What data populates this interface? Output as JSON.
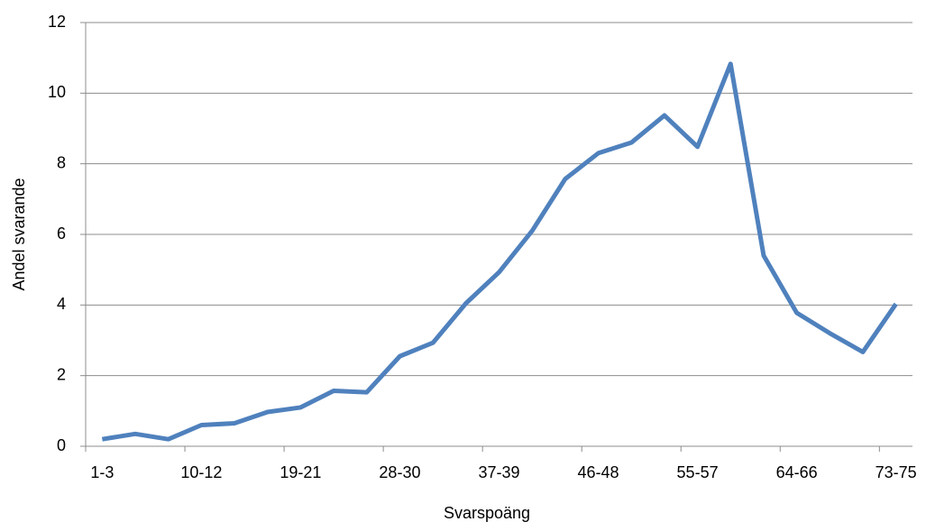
{
  "chart_data": {
    "type": "line",
    "x_label": "Svarspoäng",
    "y_label": "Andel svarande",
    "categories": [
      "1-3",
      null,
      null,
      "10-12",
      null,
      null,
      "19-21",
      null,
      null,
      "28-30",
      null,
      null,
      "37-39",
      null,
      null,
      "46-48",
      null,
      null,
      "55-57",
      null,
      null,
      "64-66",
      null,
      null,
      "73-75"
    ],
    "series": [
      {
        "name": "Andel svarande",
        "color": "#4f81bd",
        "values": [
          0.2,
          0.35,
          0.2,
          0.6,
          0.65,
          0.97,
          1.1,
          1.57,
          1.53,
          2.55,
          2.93,
          4.05,
          4.93,
          6.1,
          7.57,
          8.3,
          8.6,
          9.37,
          8.48,
          10.83,
          5.4,
          3.78,
          3.2,
          2.67,
          4.03
        ]
      }
    ],
    "ylim": [
      0,
      12
    ],
    "yticks": [
      0,
      2,
      4,
      6,
      8,
      10,
      12
    ],
    "grid": true
  }
}
